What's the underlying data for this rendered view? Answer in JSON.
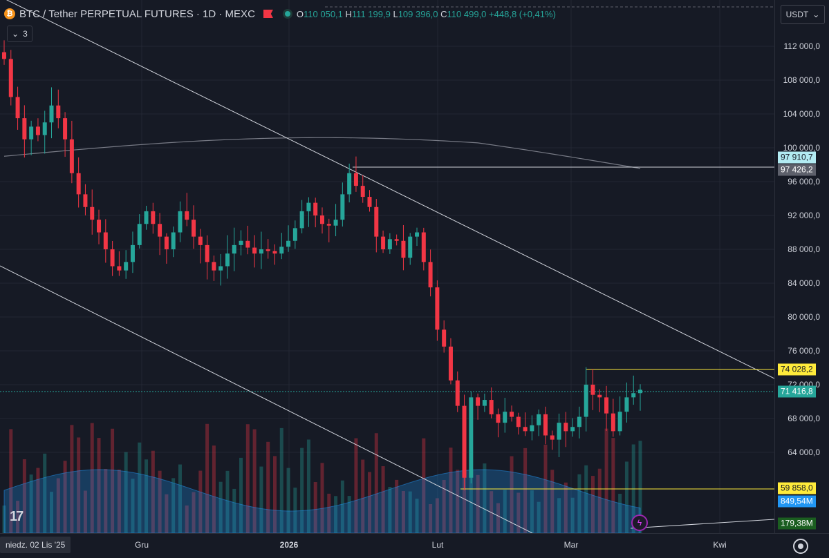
{
  "header": {
    "symbol_icon": "bitcoin-icon",
    "title": "BTC / Tether PERPETUAL FUTURES · 1D · MEXC",
    "ohlc": {
      "o_label": "O",
      "o": "110 050,1",
      "h_label": "H",
      "h": "111 199,9",
      "l_label": "L",
      "l": "109 396,0",
      "c_label": "C",
      "c": "110 499,0",
      "change": "+448,8 (+0,41%)"
    },
    "collapse_count": "3"
  },
  "currency": "USDT",
  "y_axis": {
    "ticks": [
      "112 000,0",
      "108 000,0",
      "104 000,0",
      "100 000,0",
      "96 000,0",
      "92 000,0",
      "88 000,0",
      "84 000,0",
      "80 000,0",
      "76 000,0",
      "72 000,0",
      "68 000,0",
      "64 000,0"
    ],
    "badges": {
      "b1": "97 910,7",
      "b2": "97 426,2",
      "b3": "74 028,2",
      "b4": "71 416,8",
      "b5": "59 858,0",
      "b6": "849,54M",
      "b7": "179,38M"
    }
  },
  "x_axis": {
    "date_badge": "niedz. 02 Lis '25",
    "labels": {
      "gru": "Gru",
      "y2026": "2026",
      "lut": "Lut",
      "mar": "Mar",
      "kwi": "Kwi"
    }
  },
  "colors": {
    "up": "#26a69a",
    "down": "#f23645",
    "background": "#161a25",
    "grid": "#232733"
  },
  "chart_data": {
    "type": "candlestick",
    "symbol": "BTC / Tether PERPETUAL FUTURES",
    "interval": "1D",
    "exchange": "MEXC",
    "ylim": [
      60500,
      114500
    ],
    "close_series_approx": [
      110500,
      106000,
      103500,
      101000,
      102500,
      101500,
      103000,
      105000,
      103500,
      101000,
      97000,
      94500,
      93000,
      91500,
      90000,
      88000,
      86000,
      85500,
      86500,
      88500,
      91000,
      92500,
      91000,
      89500,
      88000,
      90000,
      92500,
      91500,
      89500,
      88500,
      86500,
      85500,
      86000,
      87500,
      88500,
      89000,
      88200,
      87500,
      88000,
      87800,
      87500,
      88300,
      89000,
      90500,
      92500,
      93500,
      92000,
      91000,
      90800,
      91500,
      94500,
      97000,
      95500,
      94200,
      93000,
      89500,
      88000,
      89200,
      89000,
      87000,
      89500,
      90000,
      86500,
      83500,
      78500,
      76500,
      72500,
      69500,
      61000,
      70500,
      69500,
      70200,
      68500,
      67500,
      68800,
      68200,
      67000,
      66500,
      67200,
      68500,
      66000,
      65500,
      67500,
      66500,
      67000,
      68200,
      72000,
      70800,
      70500,
      68600,
      66500,
      68800,
      70500,
      71000,
      71400
    ]
  }
}
